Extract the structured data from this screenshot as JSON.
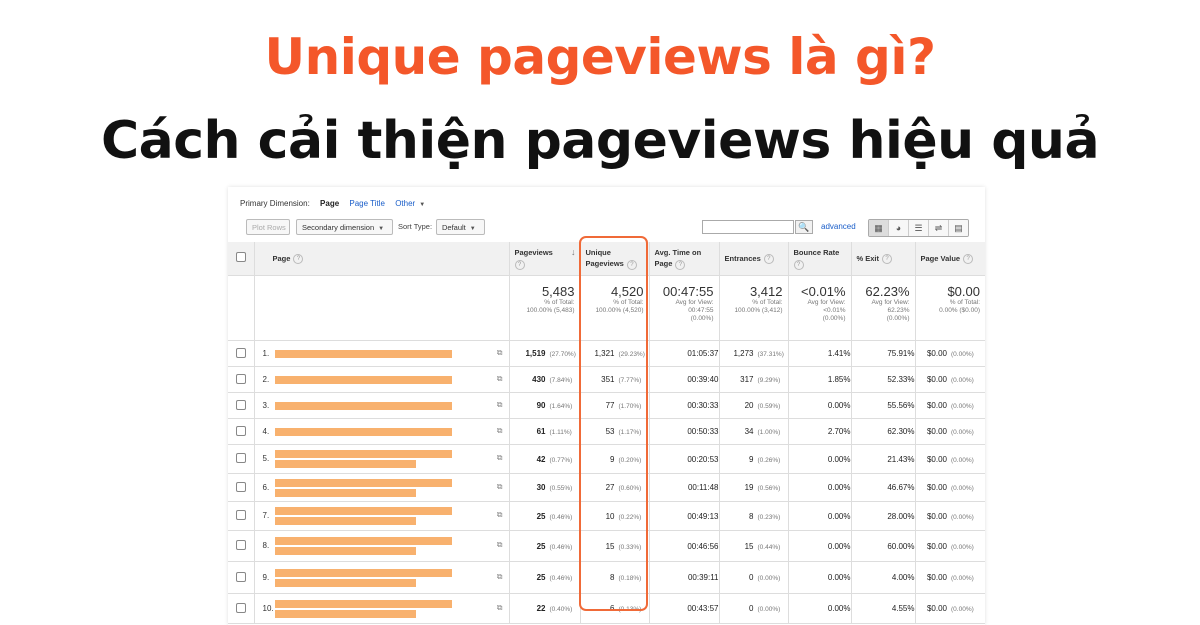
{
  "heading": {
    "line1": "Unique pageviews là gì?",
    "line2": "Cách cải thiện pageviews hiệu quả"
  },
  "colors": {
    "accent": "#f4572a",
    "highlight": "#f06a38",
    "bar": "#f8b16e",
    "link": "#1a5ec9"
  },
  "dimension_bar": {
    "label": "Primary Dimension:",
    "active": "Page",
    "page_title": "Page Title",
    "other": "Other"
  },
  "toolbar": {
    "plot_rows": "Plot Rows",
    "secondary_dimension": "Secondary dimension",
    "sort_type_label": "Sort Type:",
    "sort_type_value": "Default",
    "search_placeholder": "",
    "advanced": "advanced",
    "view_icons": [
      "grid-view-icon",
      "pie-view-icon",
      "bar-view-icon",
      "comparison-view-icon",
      "pivot-view-icon"
    ]
  },
  "table": {
    "headers": {
      "page": "Page",
      "pageviews": "Pageviews",
      "unique_pageviews_1": "Unique",
      "unique_pageviews_2": "Pageviews",
      "avg_time_1": "Avg. Time on",
      "avg_time_2": "Page",
      "entrances": "Entrances",
      "bounce_rate": "Bounce Rate",
      "exit": "% Exit",
      "page_value": "Page Value"
    },
    "totals": {
      "pageviews": {
        "value": "5,483",
        "sub1": "% of Total:",
        "sub2": "100.00% (5,483)",
        "sub3": ""
      },
      "unique": {
        "value": "4,520",
        "sub1": "% of Total:",
        "sub2": "100.00% (4,520)",
        "sub3": ""
      },
      "avg_time": {
        "value": "00:47:55",
        "sub1": "Avg for View:",
        "sub2": "00:47:55",
        "sub3": "(0.00%)"
      },
      "entrances": {
        "value": "3,412",
        "sub1": "% of Total:",
        "sub2": "100.00% (3,412)",
        "sub3": ""
      },
      "bounce": {
        "value": "<0.01%",
        "sub1": "Avg for View:",
        "sub2": "<0.01%",
        "sub3": "(0.00%)"
      },
      "exit": {
        "value": "62.23%",
        "sub1": "Avg for View:",
        "sub2": "62.23%",
        "sub3": "(0.00%)"
      },
      "page_value": {
        "value": "$0.00",
        "sub1": "% of Total:",
        "sub2": "0.00% ($0.00)",
        "sub3": ""
      }
    },
    "rows": [
      {
        "idx": "1.",
        "bar_lines": 1,
        "pageviews": "1,519",
        "pageviews_pct": "(27.70%)",
        "unique": "1,321",
        "unique_pct": "(29.23%)",
        "avg_time": "01:05:37",
        "entrances": "1,273",
        "entrances_pct": "(37.31%)",
        "bounce": "1.41%",
        "exit": "75.91%",
        "value": "$0.00",
        "value_pct": "(0.00%)"
      },
      {
        "idx": "2.",
        "bar_lines": 1,
        "pageviews": "430",
        "pageviews_pct": "(7.84%)",
        "unique": "351",
        "unique_pct": "(7.77%)",
        "avg_time": "00:39:40",
        "entrances": "317",
        "entrances_pct": "(9.29%)",
        "bounce": "1.85%",
        "exit": "52.33%",
        "value": "$0.00",
        "value_pct": "(0.00%)"
      },
      {
        "idx": "3.",
        "bar_lines": 1,
        "pageviews": "90",
        "pageviews_pct": "(1.64%)",
        "unique": "77",
        "unique_pct": "(1.70%)",
        "avg_time": "00:30:33",
        "entrances": "20",
        "entrances_pct": "(0.59%)",
        "bounce": "0.00%",
        "exit": "55.56%",
        "value": "$0.00",
        "value_pct": "(0.00%)"
      },
      {
        "idx": "4.",
        "bar_lines": 1,
        "pageviews": "61",
        "pageviews_pct": "(1.11%)",
        "unique": "53",
        "unique_pct": "(1.17%)",
        "avg_time": "00:50:33",
        "entrances": "34",
        "entrances_pct": "(1.00%)",
        "bounce": "2.70%",
        "exit": "62.30%",
        "value": "$0.00",
        "value_pct": "(0.00%)"
      },
      {
        "idx": "5.",
        "bar_lines": 2,
        "pageviews": "42",
        "pageviews_pct": "(0.77%)",
        "unique": "9",
        "unique_pct": "(0.20%)",
        "avg_time": "00:20:53",
        "entrances": "9",
        "entrances_pct": "(0.26%)",
        "bounce": "0.00%",
        "exit": "21.43%",
        "value": "$0.00",
        "value_pct": "(0.00%)"
      },
      {
        "idx": "6.",
        "bar_lines": 2,
        "pageviews": "30",
        "pageviews_pct": "(0.55%)",
        "unique": "27",
        "unique_pct": "(0.60%)",
        "avg_time": "00:11:48",
        "entrances": "19",
        "entrances_pct": "(0.56%)",
        "bounce": "0.00%",
        "exit": "46.67%",
        "value": "$0.00",
        "value_pct": "(0.00%)"
      },
      {
        "idx": "7.",
        "bar_lines": 2,
        "pageviews": "25",
        "pageviews_pct": "(0.46%)",
        "unique": "10",
        "unique_pct": "(0.22%)",
        "avg_time": "00:49:13",
        "entrances": "8",
        "entrances_pct": "(0.23%)",
        "bounce": "0.00%",
        "exit": "28.00%",
        "value": "$0.00",
        "value_pct": "(0.00%)"
      },
      {
        "idx": "8.",
        "bar_lines": 2,
        "pageviews": "25",
        "pageviews_pct": "(0.46%)",
        "unique": "15",
        "unique_pct": "(0.33%)",
        "avg_time": "00:46:56",
        "entrances": "15",
        "entrances_pct": "(0.44%)",
        "bounce": "0.00%",
        "exit": "60.00%",
        "value": "$0.00",
        "value_pct": "(0.00%)"
      },
      {
        "idx": "9.",
        "bar_lines": 2,
        "pageviews": "25",
        "pageviews_pct": "(0.46%)",
        "unique": "8",
        "unique_pct": "(0.18%)",
        "avg_time": "00:39:11",
        "entrances": "0",
        "entrances_pct": "(0.00%)",
        "bounce": "0.00%",
        "exit": "4.00%",
        "value": "$0.00",
        "value_pct": "(0.00%)"
      },
      {
        "idx": "10.",
        "bar_lines": 2,
        "pageviews": "22",
        "pageviews_pct": "(0.40%)",
        "unique": "6",
        "unique_pct": "(0.13%)",
        "avg_time": "00:43:57",
        "entrances": "0",
        "entrances_pct": "(0.00%)",
        "bounce": "0.00%",
        "exit": "4.55%",
        "value": "$0.00",
        "value_pct": "(0.00%)"
      }
    ]
  }
}
